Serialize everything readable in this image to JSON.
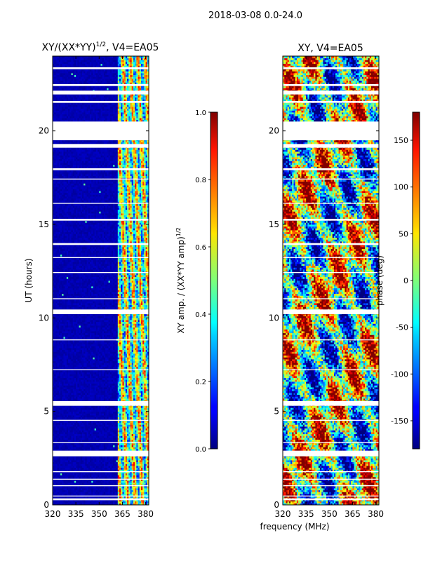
{
  "figure": {
    "title": "2018-03-08 0.0-24.0",
    "xlabel": "frequency (MHz)"
  },
  "chart_data": [
    {
      "type": "heatmap",
      "title": "XY/(XX*YY)",
      "title_exponent": "1/2",
      "title_suffix": ", V4=EA05",
      "xlabel": "",
      "ylabel": "UT (hours)",
      "xlim": [
        320,
        382
      ],
      "ylim": [
        0,
        24
      ],
      "xticks": [
        "320",
        "335",
        "350",
        "365",
        "380"
      ],
      "xtick_values": [
        320,
        335,
        350,
        365,
        380
      ],
      "yticks": [
        "0",
        "5",
        "10",
        "15",
        "20"
      ],
      "ytick_values": [
        0,
        5,
        10,
        15,
        20
      ],
      "colormap": "jet",
      "colorbar": {
        "label": "XY amp. / (XX*YY amp)",
        "label_exponent": "1/2",
        "range": [
          0.0,
          1.0
        ],
        "ticks": [
          "0.0",
          "0.2",
          "0.4",
          "0.6",
          "0.8",
          "1.0"
        ],
        "tick_values": [
          0.0,
          0.2,
          0.4,
          0.6,
          0.8,
          1.0
        ]
      },
      "data_gaps_hours": [
        [
          0.25,
          0.35
        ],
        [
          0.45,
          0.5
        ],
        [
          1.0,
          1.05
        ],
        [
          1.35,
          1.4
        ],
        [
          1.75,
          1.8
        ],
        [
          2.6,
          2.9
        ],
        [
          3.3,
          3.35
        ],
        [
          4.5,
          4.55
        ],
        [
          5.3,
          5.55
        ],
        [
          7.2,
          7.25
        ],
        [
          8.8,
          8.85
        ],
        [
          10.2,
          10.45
        ],
        [
          11.0,
          11.05
        ],
        [
          12.4,
          12.45
        ],
        [
          13.2,
          13.25
        ],
        [
          13.9,
          14.0
        ],
        [
          15.2,
          15.3
        ],
        [
          16.1,
          16.15
        ],
        [
          17.4,
          17.45
        ],
        [
          17.9,
          18.0
        ],
        [
          19.1,
          19.3
        ],
        [
          19.5,
          20.5
        ],
        [
          21.5,
          21.6
        ],
        [
          21.95,
          22.15
        ],
        [
          22.4,
          22.5
        ],
        [
          23.3,
          23.4
        ]
      ],
      "features": [
        {
          "note": "mostly low amplitude (0.0-0.1) from 320-362 MHz"
        },
        {
          "note": "elevated amplitude (0.3-0.6) bands near 363-380 MHz"
        }
      ]
    },
    {
      "type": "heatmap",
      "title": "XY, V4=EA05",
      "xlabel": "",
      "ylabel": "",
      "xlim": [
        320,
        382
      ],
      "ylim": [
        0,
        24
      ],
      "xticks": [
        "320",
        "335",
        "350",
        "365",
        "380"
      ],
      "xtick_values": [
        320,
        335,
        350,
        365,
        380
      ],
      "yticks": [
        "0",
        "5",
        "10",
        "15",
        "20"
      ],
      "ytick_values": [
        0,
        5,
        10,
        15,
        20
      ],
      "colormap": "jet",
      "colorbar": {
        "label": "phase (deg)",
        "range": [
          -180,
          180
        ],
        "ticks": [
          "-150",
          "-100",
          "-50",
          "0",
          "50",
          "100",
          "150"
        ],
        "tick_values": [
          -150,
          -100,
          -50,
          0,
          50,
          100,
          150
        ]
      },
      "data_gaps_hours": [
        [
          0.25,
          0.35
        ],
        [
          0.45,
          0.5
        ],
        [
          1.0,
          1.05
        ],
        [
          1.35,
          1.4
        ],
        [
          1.75,
          1.8
        ],
        [
          2.6,
          2.9
        ],
        [
          3.3,
          3.35
        ],
        [
          4.5,
          4.55
        ],
        [
          5.3,
          5.55
        ],
        [
          7.2,
          7.25
        ],
        [
          8.8,
          8.85
        ],
        [
          10.2,
          10.45
        ],
        [
          11.0,
          11.05
        ],
        [
          12.4,
          12.45
        ],
        [
          13.2,
          13.25
        ],
        [
          13.9,
          14.0
        ],
        [
          15.2,
          15.3
        ],
        [
          16.1,
          16.15
        ],
        [
          17.4,
          17.45
        ],
        [
          17.9,
          18.0
        ],
        [
          19.1,
          19.3
        ],
        [
          19.5,
          20.5
        ],
        [
          21.5,
          21.6
        ],
        [
          21.95,
          22.15
        ],
        [
          22.4,
          22.5
        ],
        [
          23.3,
          23.4
        ]
      ],
      "features": [
        {
          "note": "phase values span full -180 to 180 deg range, noisy"
        }
      ]
    }
  ]
}
